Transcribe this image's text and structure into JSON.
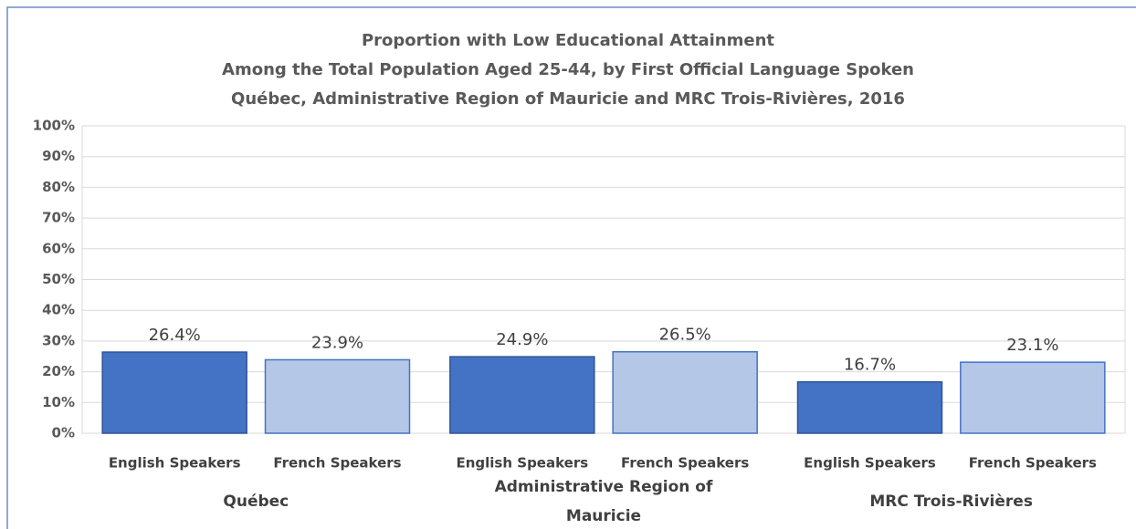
{
  "chart_data": {
    "type": "bar",
    "title": [
      "Proportion with Low Educational Attainment",
      "Among the Total Population Aged 25-44, by First Official Language Spoken",
      "Québec, Administrative Region of Mauricie and MRC Trois-Rivières, 2016"
    ],
    "categories": [
      "Québec",
      "Administrative Region of Mauricie",
      "MRC Trois-Rivières"
    ],
    "series": [
      {
        "name": "English Speakers",
        "color": "#4472c4",
        "values": [
          26.4,
          24.9,
          16.7
        ],
        "value_labels": [
          "26.4%",
          "24.9%",
          "16.7%"
        ]
      },
      {
        "name": "French Speakers",
        "color": "#b4c7e7",
        "values": [
          23.9,
          26.5,
          23.1
        ],
        "value_labels": [
          "23.9%",
          "26.5%",
          "23.1%"
        ]
      }
    ],
    "ylim": [
      0,
      100
    ],
    "yticks": [
      {
        "value": 0,
        "label": "0%"
      },
      {
        "value": 10,
        "label": "10%"
      },
      {
        "value": 20,
        "label": "20%"
      },
      {
        "value": 30,
        "label": "30%"
      },
      {
        "value": 40,
        "label": "40%"
      },
      {
        "value": 50,
        "label": "50%"
      },
      {
        "value": 60,
        "label": "60%"
      },
      {
        "value": 70,
        "label": "70%"
      },
      {
        "value": 80,
        "label": "80%"
      },
      {
        "value": 90,
        "label": "90%"
      },
      {
        "value": 100,
        "label": "100%"
      }
    ],
    "grid": true
  }
}
